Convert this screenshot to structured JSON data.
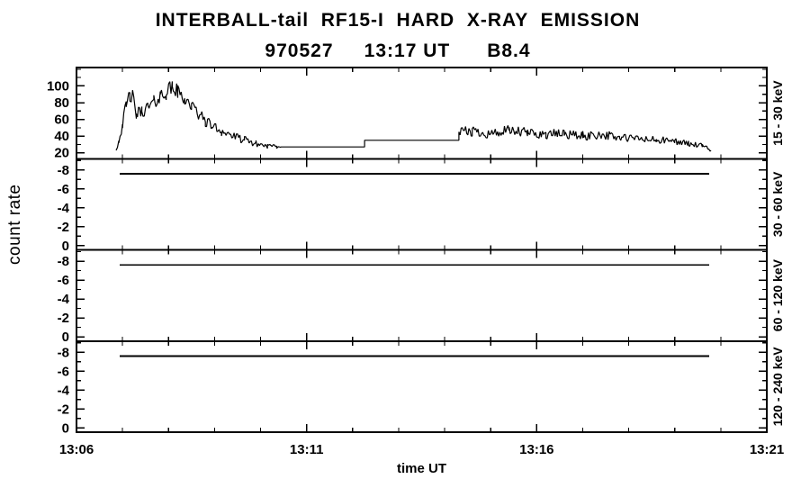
{
  "chart_data": {
    "type": "line",
    "title": "INTERBALL-tail  RF15-I  HARD  X-RAY  EMISSION",
    "subtitle": "970527     13:17 UT      B8.4",
    "xlabel": "time UT",
    "ylabel": "count rate",
    "colors": {
      "foreground": "#000000",
      "background": "#ffffff"
    },
    "x_axis": {
      "tick_labels": [
        "13:06",
        "13:11",
        "13:16",
        "13:21"
      ],
      "tick_minutes": [
        0,
        5,
        10,
        15
      ],
      "minor_step_minutes": 1,
      "range_minutes": [
        0,
        15
      ]
    },
    "panels": [
      {
        "label": "15 - 30 keV",
        "ylim": [
          13,
          122
        ],
        "yticks": [
          20,
          40,
          60,
          80,
          100
        ],
        "ytick_minor_step": 10,
        "series": {
          "style": "noisy_histogram",
          "sample_dt_minutes": 0.025,
          "noise_seed": 42,
          "keypoints": [
            [
              0.86,
              24,
              2
            ],
            [
              0.92,
              34,
              4
            ],
            [
              1.0,
              55,
              7
            ],
            [
              1.08,
              75,
              9
            ],
            [
              1.16,
              90,
              10
            ],
            [
              1.22,
              86,
              10
            ],
            [
              1.3,
              66,
              8
            ],
            [
              1.42,
              70,
              8
            ],
            [
              1.55,
              74,
              8
            ],
            [
              1.68,
              80,
              9
            ],
            [
              1.82,
              88,
              10
            ],
            [
              1.95,
              93,
              10
            ],
            [
              2.08,
              98,
              10
            ],
            [
              2.2,
              93,
              9
            ],
            [
              2.35,
              85,
              9
            ],
            [
              2.5,
              76,
              8
            ],
            [
              2.65,
              66,
              8
            ],
            [
              2.8,
              58,
              7
            ],
            [
              2.95,
              52,
              6
            ],
            [
              3.15,
              46,
              6
            ],
            [
              3.4,
              40,
              5
            ],
            [
              3.65,
              35,
              5
            ],
            [
              3.9,
              31,
              4
            ],
            [
              4.15,
              28,
              3
            ],
            [
              4.35,
              27,
              2
            ],
            [
              4.45,
              27,
              0
            ],
            [
              6.26,
              27,
              0
            ],
            [
              6.26,
              35,
              0
            ],
            [
              8.31,
              35,
              0
            ],
            [
              8.31,
              44,
              6
            ],
            [
              8.6,
              46,
              7
            ],
            [
              9.0,
              43,
              6
            ],
            [
              9.4,
              46,
              7
            ],
            [
              9.8,
              44,
              6
            ],
            [
              10.2,
              42,
              6
            ],
            [
              10.6,
              43,
              6
            ],
            [
              11.0,
              40,
              6
            ],
            [
              11.4,
              42,
              6
            ],
            [
              11.8,
              38,
              5
            ],
            [
              12.2,
              37,
              5
            ],
            [
              12.6,
              35,
              5
            ],
            [
              13.0,
              34,
              4
            ],
            [
              13.3,
              31,
              4
            ],
            [
              13.6,
              28,
              3
            ],
            [
              13.79,
              23,
              2
            ]
          ]
        }
      },
      {
        "label": "30 - 60 keV",
        "ylim": [
          0.45,
          -9.2
        ],
        "yticks": [
          0,
          -2,
          -4,
          -6,
          -8
        ],
        "ytick_minor_step": 1,
        "flat_line": {
          "t_start": 0.94,
          "t_end": 13.75,
          "value": -7.6
        }
      },
      {
        "label": "60 - 120 keV",
        "ylim": [
          0.45,
          -9.2
        ],
        "yticks": [
          0,
          -2,
          -4,
          -6,
          -8
        ],
        "ytick_minor_step": 1,
        "flat_line": {
          "t_start": 0.94,
          "t_end": 13.75,
          "value": -7.6
        }
      },
      {
        "label": "120 - 240 keV",
        "ylim": [
          0.45,
          -9.2
        ],
        "yticks": [
          0,
          -2,
          -4,
          -6,
          -8
        ],
        "ytick_minor_step": 1,
        "flat_line": {
          "t_start": 0.94,
          "t_end": 13.75,
          "value": -7.6
        }
      }
    ]
  }
}
